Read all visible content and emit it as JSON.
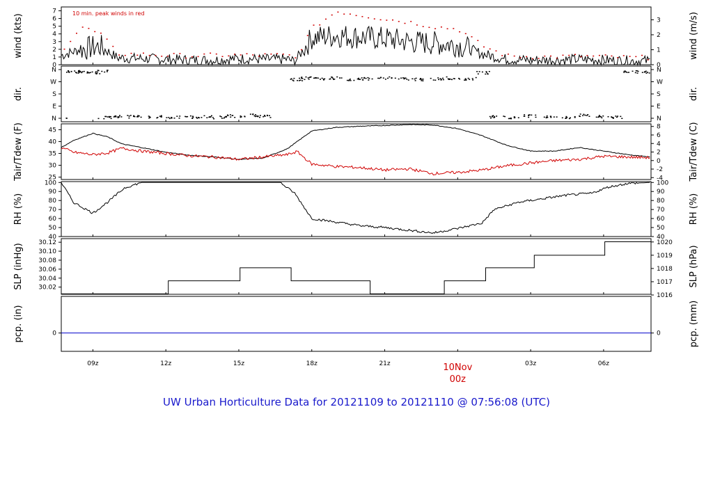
{
  "title": "UW Urban Horticulture Data for 20121109  to  20121110 @ 07:56:08  (UTC)",
  "x_axis": {
    "ticks": [
      "09z",
      "12z",
      "15z",
      "18z",
      "21z",
      "00z",
      "03z",
      "06z"
    ],
    "day_label": "10Nov",
    "day_tick": "00z"
  },
  "colors": {
    "title": "#1a1acc",
    "secondary": "#d00000",
    "primary": "#000000",
    "precip": "#0000cc"
  },
  "chart_data": [
    {
      "type": "line",
      "panel": "wind",
      "ylabel_left": "wind (kts)",
      "ylabel_right": "wind (m/s)",
      "annotation": "10 min. peak winds in red",
      "left_ticks": [
        "0",
        "1",
        "2",
        "3",
        "4",
        "5",
        "6",
        "7"
      ],
      "right_ticks": [
        "0",
        "1",
        "2",
        "3"
      ],
      "ylim": [
        0,
        7.5
      ],
      "x_hours": [
        7.7,
        8.5,
        9.3,
        10.0,
        11.0,
        12.0,
        13.0,
        14.0,
        15.0,
        16.0,
        17.0,
        17.3,
        18.0,
        19.0,
        20.0,
        21.0,
        22.0,
        23.0,
        24.0,
        25.0,
        26.0,
        27.0,
        28.0,
        29.0,
        30.0,
        31.0,
        31.9
      ],
      "series": [
        {
          "name": "mean",
          "values": [
            1.2,
            2.0,
            2.4,
            0.9,
            0.8,
            0.7,
            0.6,
            0.6,
            0.8,
            0.7,
            0.7,
            0.4,
            3.5,
            3.8,
            3.6,
            3.4,
            3.0,
            2.8,
            2.6,
            1.4,
            0.7,
            0.6,
            0.6,
            0.7,
            0.6,
            0.5,
            0.5
          ]
        },
        {
          "name": "peak",
          "values": [
            2.0,
            5.0,
            4.0,
            1.5,
            1.4,
            1.3,
            1.2,
            1.3,
            1.3,
            1.3,
            1.3,
            0.9,
            4.8,
            7.0,
            6.5,
            6.0,
            5.6,
            5.0,
            4.7,
            2.5,
            1.2,
            1.1,
            1.1,
            1.2,
            1.1,
            1.0,
            1.0
          ]
        }
      ]
    },
    {
      "type": "scatter",
      "panel": "direction",
      "ylabel_left": "dir.",
      "ylabel_right": "dir.",
      "left_ticks": [
        "N",
        "W",
        "S",
        "E",
        "N"
      ],
      "right_ticks": [
        "N",
        "W",
        "S",
        "E",
        "N"
      ],
      "points": [
        [
          7.8,
          355
        ],
        [
          8.2,
          350
        ],
        [
          8.6,
          345
        ],
        [
          9.0,
          340
        ],
        [
          9.3,
          355
        ],
        [
          9.7,
          10
        ],
        [
          10.2,
          15
        ],
        [
          10.8,
          20
        ],
        [
          11.5,
          15
        ],
        [
          12.3,
          10
        ],
        [
          13.0,
          12
        ],
        [
          13.6,
          15
        ],
        [
          14.2,
          10
        ],
        [
          14.8,
          20
        ],
        [
          15.5,
          25
        ],
        [
          16.0,
          18
        ],
        [
          17.4,
          290
        ],
        [
          17.7,
          300
        ],
        [
          18.3,
          295
        ],
        [
          19.0,
          300
        ],
        [
          19.7,
          290
        ],
        [
          20.3,
          295
        ],
        [
          21.0,
          300
        ],
        [
          21.7,
          295
        ],
        [
          22.4,
          290
        ],
        [
          23.1,
          295
        ],
        [
          23.8,
          300
        ],
        [
          24.5,
          295
        ],
        [
          25.0,
          340
        ],
        [
          25.6,
          15
        ],
        [
          26.2,
          10
        ],
        [
          27.0,
          20
        ],
        [
          27.8,
          15
        ],
        [
          28.5,
          10
        ],
        [
          29.2,
          25
        ],
        [
          29.9,
          15
        ],
        [
          30.5,
          10
        ],
        [
          31.1,
          350
        ],
        [
          31.6,
          345
        ]
      ]
    },
    {
      "type": "line",
      "panel": "temperature",
      "ylabel_left": "Tair/Tdew (F)",
      "ylabel_right": "Tair/Tdew (C)",
      "left_ticks": [
        "25",
        "30",
        "35",
        "40",
        "45"
      ],
      "right_ticks": [
        "-4",
        "-2",
        "0",
        "2",
        "4",
        "6",
        "8"
      ],
      "ylim": [
        24,
        47.5
      ],
      "x_hours": [
        7.7,
        8.2,
        9.0,
        9.6,
        10.2,
        11.0,
        12.0,
        13.0,
        14.0,
        15.0,
        16.0,
        17.0,
        17.4,
        18.0,
        19.0,
        20.0,
        21.0,
        22.0,
        23.0,
        24.0,
        25.0,
        26.0,
        27.0,
        28.0,
        29.0,
        30.0,
        31.0,
        31.9
      ],
      "series": [
        {
          "name": "Tair",
          "values": [
            37.5,
            40.5,
            43.5,
            42.0,
            39.0,
            37.5,
            35.5,
            34.2,
            33.5,
            32.5,
            33.0,
            37.0,
            40.0,
            44.5,
            46.0,
            46.5,
            46.8,
            47.2,
            47.0,
            45.5,
            42.5,
            38.5,
            36.0,
            36.0,
            37.5,
            36.0,
            34.5,
            33.5
          ]
        },
        {
          "name": "Tdew",
          "values": [
            37.5,
            35.5,
            34.5,
            35.2,
            37.2,
            36.0,
            35.0,
            34.0,
            33.5,
            32.5,
            33.5,
            34.5,
            35.8,
            30.5,
            29.5,
            29.0,
            28.0,
            28.5,
            26.5,
            27.0,
            28.0,
            29.8,
            31.0,
            32.0,
            32.5,
            33.8,
            33.5,
            33.2
          ]
        }
      ]
    },
    {
      "type": "line",
      "panel": "rh",
      "ylabel_left": "RH (%)",
      "ylabel_right": "RH (%)",
      "left_ticks": [
        "40",
        "50",
        "60",
        "70",
        "80",
        "90",
        "100"
      ],
      "right_ticks": [
        "40",
        "50",
        "60",
        "70",
        "80",
        "90",
        "100"
      ],
      "ylim": [
        40,
        101
      ],
      "x_hours": [
        7.7,
        8.2,
        9.0,
        9.6,
        10.3,
        11.0,
        12.0,
        13.0,
        14.0,
        15.0,
        16.0,
        16.7,
        17.3,
        18.0,
        19.0,
        20.0,
        21.0,
        22.0,
        23.0,
        24.0,
        25.0,
        25.5,
        26.5,
        27.5,
        28.5,
        29.5,
        30.2,
        31.0,
        31.9
      ],
      "series": [
        {
          "name": "RH",
          "values": [
            100,
            78,
            66,
            78,
            94,
            100,
            100,
            100,
            100,
            100,
            100,
            100,
            88,
            60,
            56,
            52,
            50,
            47,
            44,
            49,
            55,
            70,
            78,
            82,
            86,
            88,
            95,
            99,
            100
          ]
        }
      ]
    },
    {
      "type": "line",
      "panel": "pressure",
      "ylabel_left": "SLP (inHg)",
      "ylabel_right": "SLP (hPa)",
      "left_ticks": [
        "30.02",
        "30.04",
        "30.06",
        "30.08",
        "30.10",
        "30.12"
      ],
      "right_ticks": [
        "1016",
        "1017",
        "1018",
        "1019",
        "1020"
      ],
      "ylim": [
        30.004,
        30.128
      ],
      "steps": [
        [
          7.7,
          30.005
        ],
        [
          12.1,
          30.034
        ],
        [
          15.05,
          30.063
        ],
        [
          17.15,
          30.034
        ],
        [
          20.4,
          30.005
        ],
        [
          23.45,
          30.034
        ],
        [
          25.15,
          30.063
        ],
        [
          27.15,
          30.091
        ],
        [
          30.05,
          30.121
        ],
        [
          31.95,
          30.121
        ]
      ]
    },
    {
      "type": "line",
      "panel": "precipitation",
      "ylabel_left": "pcp. (in)",
      "ylabel_right": "pcp. (mm)",
      "left_ticks": [
        "0"
      ],
      "right_ticks": [
        "0"
      ],
      "ylim": [
        -0.5,
        1.0
      ],
      "x_hours": [
        7.7,
        31.9
      ],
      "series": [
        {
          "name": "pcp",
          "values": [
            0,
            0
          ]
        }
      ]
    }
  ]
}
